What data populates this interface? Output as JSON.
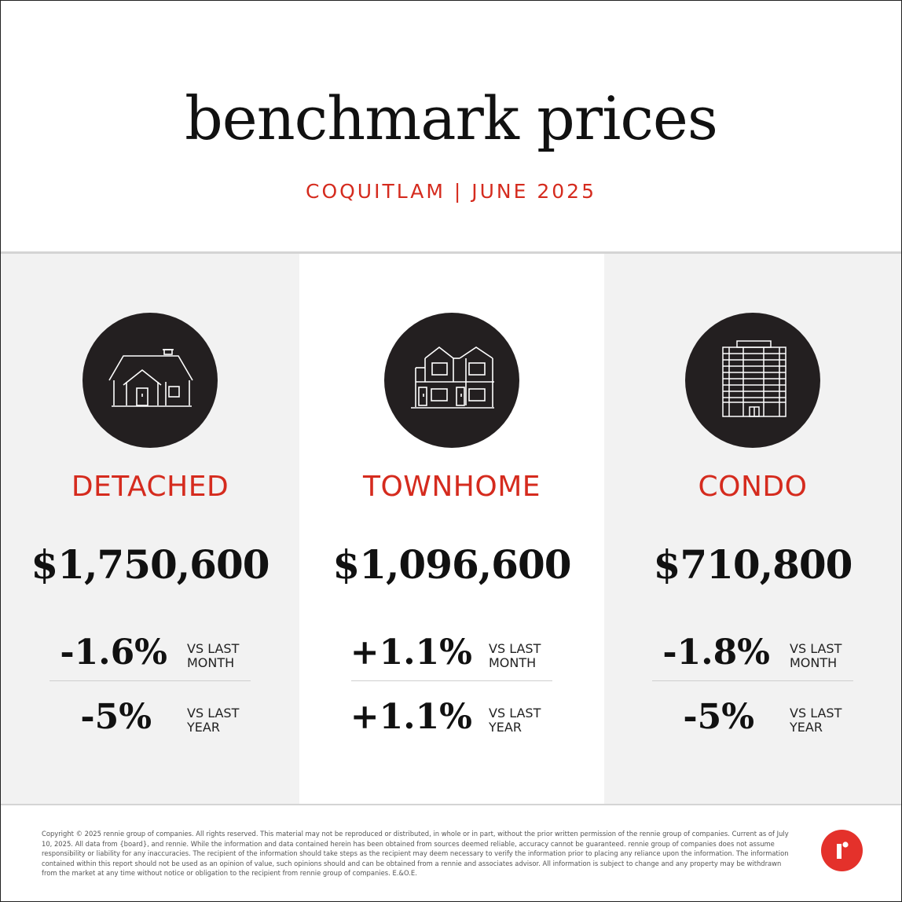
{
  "header": {
    "title": "benchmark prices",
    "subtitle": "COQUITLAM | JUNE 2025"
  },
  "properties": [
    {
      "type": "DETACHED",
      "icon": "detached-house-icon",
      "price": "$1,750,600",
      "month_change": "-1.6%",
      "month_label": "VS LAST\nMONTH",
      "year_change": "-5%",
      "year_label": "VS LAST\nYEAR"
    },
    {
      "type": "TOWNHOME",
      "icon": "townhome-icon",
      "price": "$1,096,600",
      "month_change": "+1.1%",
      "month_label": "VS LAST\nMONTH",
      "year_change": "+1.1%",
      "year_label": "VS LAST\nYEAR"
    },
    {
      "type": "CONDO",
      "icon": "condo-building-icon",
      "price": "$710,800",
      "month_change": "-1.8%",
      "month_label": "VS LAST\nMONTH",
      "year_change": "-5%",
      "year_label": "VS LAST\nYEAR"
    }
  ],
  "footer": {
    "disclaimer": "Copyright © 2025 rennie group of companies. All rights reserved. This material may not be reproduced or distributed, in whole or in part, without the prior written permission of the rennie group of companies. Current as of July 10, 2025. All data from {board}, and rennie. While the information and data contained herein has been obtained from sources deemed reliable, accuracy cannot be guaranteed. rennie group of companies does not assume responsibility or liability for any inaccuracies. The recipient of the information should take steps as the recipient may deem necessary to verify the information prior to placing any reliance upon the information. The information contained within this report should not be used as an opinion of value, such opinions should and can be obtained from a rennie and associates advisor. All information is subject to change and any property may be withdrawn from the market at any time without notice or obligation to the recipient from rennie group of companies. E.&O.E.",
    "logo_icon": "rennie-logo-icon"
  },
  "colors": {
    "accent": "#d52b1e",
    "logo": "#e4312b",
    "icon_circle": "#231f20",
    "panel_gray": "#f2f2f2"
  }
}
